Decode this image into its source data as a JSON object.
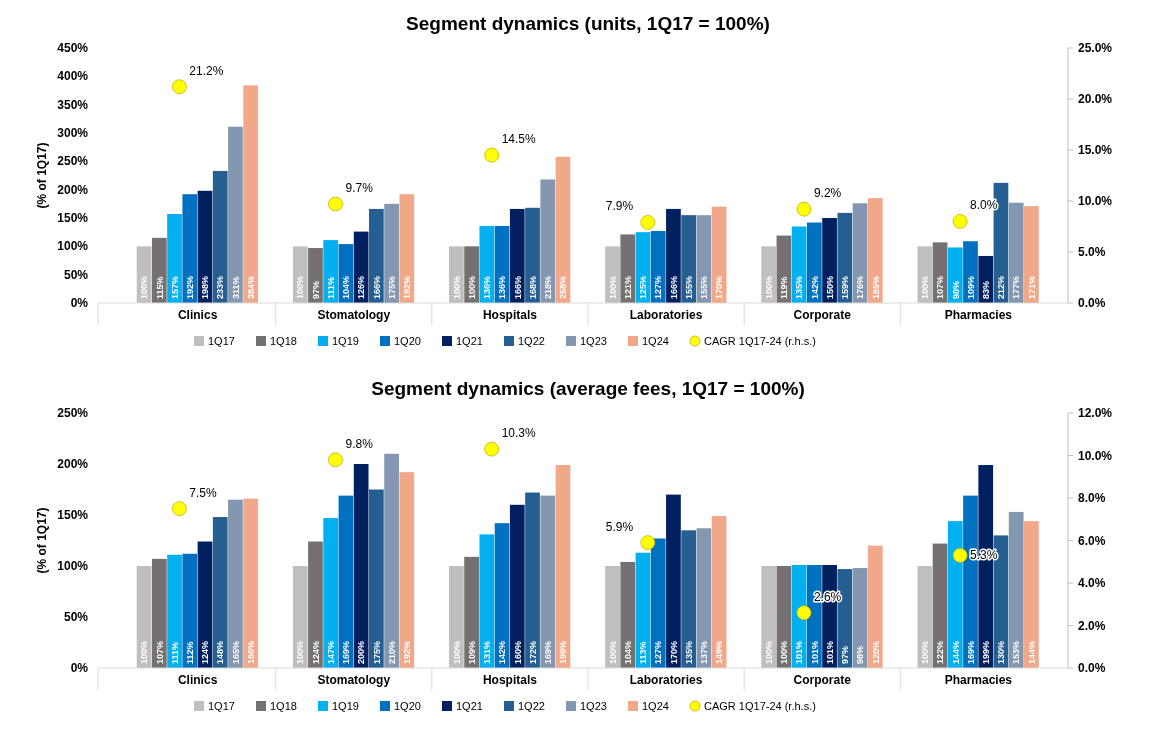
{
  "chart_data": [
    {
      "type": "bar",
      "title": "Segment dynamics (units, 1Q17 = 100%)",
      "ylabel": "(% of 1Q17)",
      "categories": [
        "Clinics",
        "Stomatology",
        "Hospitals",
        "Laboratories",
        "Corporate",
        "Pharmacies"
      ],
      "ylim": [
        0,
        450
      ],
      "yticks": [
        {
          "value": 0,
          "label": "0%"
        },
        {
          "value": 50,
          "label": "50%"
        },
        {
          "value": 100,
          "label": "100%"
        },
        {
          "value": 150,
          "label": "150%"
        },
        {
          "value": 200,
          "label": "200%"
        },
        {
          "value": 250,
          "label": "250%"
        },
        {
          "value": 300,
          "label": "300%"
        },
        {
          "value": 350,
          "label": "350%"
        },
        {
          "value": 400,
          "label": "400%"
        },
        {
          "value": 450,
          "label": "450%"
        }
      ],
      "y2lim": [
        0,
        25
      ],
      "y2ticks": [
        {
          "value": 0,
          "label": "0.0%"
        },
        {
          "value": 5,
          "label": "5.0%"
        },
        {
          "value": 10,
          "label": "10.0%"
        },
        {
          "value": 15,
          "label": "15.0%"
        },
        {
          "value": 20,
          "label": "20.0%"
        },
        {
          "value": 25,
          "label": "25.0%"
        }
      ],
      "legend": "bottom",
      "grid": false,
      "series": [
        {
          "name": "1Q17",
          "color": "#bfbfbf",
          "values": [
            100,
            100,
            100,
            100,
            100,
            100
          ],
          "value_labels": [
            "100%",
            "100%",
            "100%",
            "100%",
            "100%",
            "100%"
          ]
        },
        {
          "name": "1Q18",
          "color": "#767171",
          "values": [
            115,
            97,
            100,
            121,
            119,
            107
          ],
          "value_labels": [
            "115%",
            "97%",
            "100%",
            "121%",
            "119%",
            "107%"
          ]
        },
        {
          "name": "1Q19",
          "color": "#00b0f0",
          "values": [
            157,
            111,
            136,
            125,
            135,
            98
          ],
          "value_labels": [
            "157%",
            "111%",
            "136%",
            "125%",
            "135%",
            "98%"
          ]
        },
        {
          "name": "1Q20",
          "color": "#0070c0",
          "values": [
            192,
            104,
            136,
            127,
            142,
            109
          ],
          "value_labels": [
            "192%",
            "104%",
            "136%",
            "127%",
            "142%",
            "109%"
          ]
        },
        {
          "name": "1Q21",
          "color": "#002060",
          "values": [
            198,
            126,
            166,
            166,
            150,
            83
          ],
          "value_labels": [
            "198%",
            "126%",
            "166%",
            "166%",
            "150%",
            "83%"
          ]
        },
        {
          "name": "1Q22",
          "color": "#255e91",
          "values": [
            233,
            166,
            168,
            155,
            159,
            212
          ],
          "value_labels": [
            "233%",
            "166%",
            "168%",
            "155%",
            "159%",
            "212%"
          ]
        },
        {
          "name": "1Q23",
          "color": "#8497b0",
          "values": [
            311,
            175,
            218,
            155,
            176,
            177
          ],
          "value_labels": [
            "311%",
            "175%",
            "218%",
            "155%",
            "176%",
            "177%"
          ]
        },
        {
          "name": "1Q24",
          "color": "#f0a889",
          "values": [
            384,
            192,
            258,
            170,
            185,
            171
          ],
          "value_labels": [
            "384%",
            "192%",
            "258%",
            "170%",
            "185%",
            "171%"
          ]
        },
        {
          "name": "CAGR 1Q17-24 (r.h.s.)",
          "type": "scatter",
          "axis": "y2",
          "marker": "circle",
          "color": "#ffff00",
          "values": [
            21.2,
            9.7,
            14.5,
            7.9,
            9.2,
            8.0
          ],
          "value_labels": [
            "21.2%",
            "9.7%",
            "14.5%",
            "7.9%",
            "9.2%",
            "8.0%"
          ]
        }
      ]
    },
    {
      "type": "bar",
      "title": "Segment dynamics (average fees, 1Q17 = 100%)",
      "ylabel": "(% of 1Q17)",
      "categories": [
        "Clinics",
        "Stomatology",
        "Hospitals",
        "Laboratories",
        "Corporate",
        "Pharmacies"
      ],
      "ylim": [
        0,
        250
      ],
      "yticks": [
        {
          "value": 0,
          "label": "0%"
        },
        {
          "value": 50,
          "label": "50%"
        },
        {
          "value": 100,
          "label": "100%"
        },
        {
          "value": 150,
          "label": "150%"
        },
        {
          "value": 200,
          "label": "200%"
        },
        {
          "value": 250,
          "label": "250%"
        }
      ],
      "y2lim": [
        0,
        12
      ],
      "y2ticks": [
        {
          "value": 0,
          "label": "0.0%"
        },
        {
          "value": 2,
          "label": "2.0%"
        },
        {
          "value": 4,
          "label": "4.0%"
        },
        {
          "value": 6,
          "label": "6.0%"
        },
        {
          "value": 8,
          "label": "8.0%"
        },
        {
          "value": 10,
          "label": "10.0%"
        },
        {
          "value": 12,
          "label": "12.0%"
        }
      ],
      "legend": "bottom",
      "grid": false,
      "series": [
        {
          "name": "1Q17",
          "color": "#bfbfbf",
          "values": [
            100,
            100,
            100,
            100,
            100,
            100
          ],
          "value_labels": [
            "100%",
            "100%",
            "100%",
            "100%",
            "100%",
            "100%"
          ]
        },
        {
          "name": "1Q18",
          "color": "#767171",
          "values": [
            107,
            124,
            109,
            104,
            100,
            122
          ],
          "value_labels": [
            "107%",
            "124%",
            "109%",
            "104%",
            "100%",
            "122%"
          ]
        },
        {
          "name": "1Q19",
          "color": "#00b0f0",
          "values": [
            111,
            147,
            131,
            113,
            101,
            144
          ],
          "value_labels": [
            "111%",
            "147%",
            "131%",
            "113%",
            "101%",
            "144%"
          ]
        },
        {
          "name": "1Q20",
          "color": "#0070c0",
          "values": [
            112,
            169,
            142,
            127,
            101,
            169
          ],
          "value_labels": [
            "112%",
            "169%",
            "142%",
            "127%",
            "101%",
            "169%"
          ]
        },
        {
          "name": "1Q21",
          "color": "#002060",
          "values": [
            124,
            200,
            160,
            170,
            101,
            199
          ],
          "value_labels": [
            "124%",
            "200%",
            "160%",
            "170%",
            "101%",
            "199%"
          ]
        },
        {
          "name": "1Q22",
          "color": "#255e91",
          "values": [
            148,
            175,
            172,
            135,
            97,
            130
          ],
          "value_labels": [
            "148%",
            "175%",
            "172%",
            "135%",
            "97%",
            "130%"
          ]
        },
        {
          "name": "1Q23",
          "color": "#8497b0",
          "values": [
            165,
            210,
            169,
            137,
            98,
            153
          ],
          "value_labels": [
            "165%",
            "210%",
            "169%",
            "137%",
            "98%",
            "153%"
          ]
        },
        {
          "name": "1Q24",
          "color": "#f0a889",
          "values": [
            166,
            192,
            199,
            149,
            120,
            144
          ],
          "value_labels": [
            "166%",
            "192%",
            "199%",
            "149%",
            "120%",
            "144%"
          ]
        },
        {
          "name": "CAGR 1Q17-24 (r.h.s.)",
          "type": "scatter",
          "axis": "y2",
          "marker": "circle",
          "color": "#ffff00",
          "values": [
            7.5,
            9.8,
            10.3,
            5.9,
            2.6,
            5.3
          ],
          "value_labels": [
            "7.5%",
            "9.8%",
            "10.3%",
            "5.9%",
            "2.6%",
            "5.3%"
          ]
        }
      ]
    }
  ]
}
